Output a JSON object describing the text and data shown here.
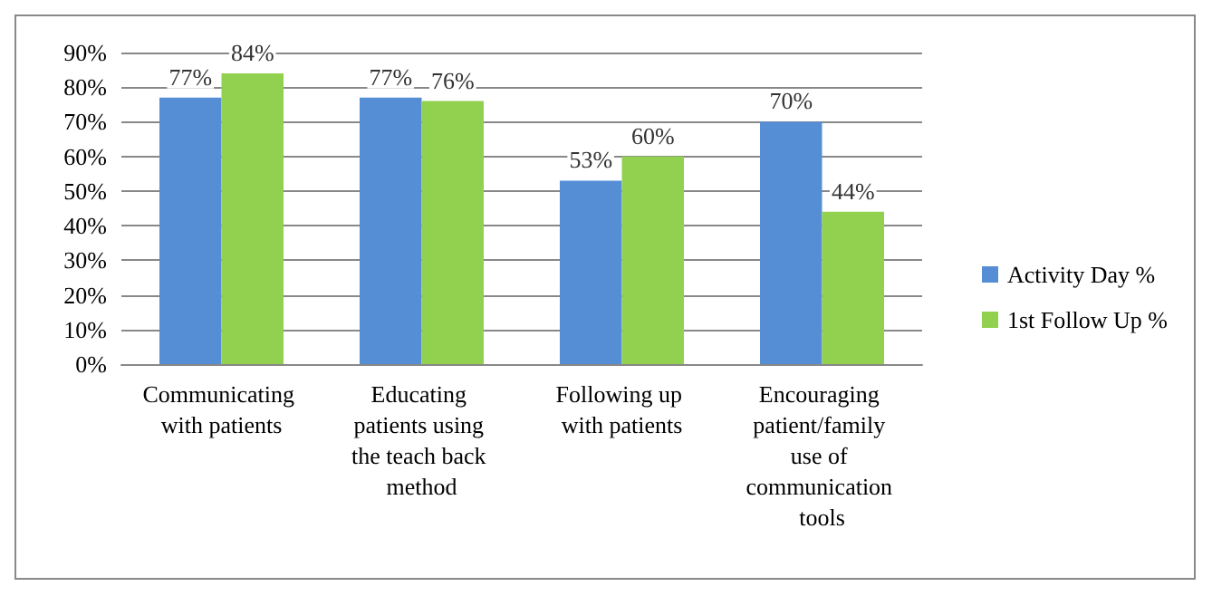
{
  "chart_data": {
    "type": "bar",
    "categories": [
      "Communicating with patients",
      "Educating patients using the teach back method",
      "Following up with patients",
      "Encouraging patient/family use of communication tools"
    ],
    "series": [
      {
        "name": "Activity Day %",
        "color": "#558ed5",
        "values": [
          77,
          77,
          53,
          70
        ],
        "value_labels": [
          "77%",
          "77%",
          "53%",
          "70%"
        ]
      },
      {
        "name": "1st Follow Up %",
        "color": "#92d050",
        "values": [
          84,
          76,
          60,
          44
        ],
        "value_labels": [
          "84%",
          "76%",
          "60%",
          "44%"
        ]
      }
    ],
    "ylim": [
      0,
      90
    ],
    "yticks": [
      {
        "value": 0,
        "label": "0%"
      },
      {
        "value": 10,
        "label": "10%"
      },
      {
        "value": 20,
        "label": "20%"
      },
      {
        "value": 30,
        "label": "30%"
      },
      {
        "value": 40,
        "label": "40%"
      },
      {
        "value": 50,
        "label": "50%"
      },
      {
        "value": 60,
        "label": "60%"
      },
      {
        "value": 70,
        "label": "70%"
      },
      {
        "value": 80,
        "label": "80%"
      },
      {
        "value": 90,
        "label": "90%"
      }
    ],
    "grid": "y",
    "legend": "right"
  }
}
